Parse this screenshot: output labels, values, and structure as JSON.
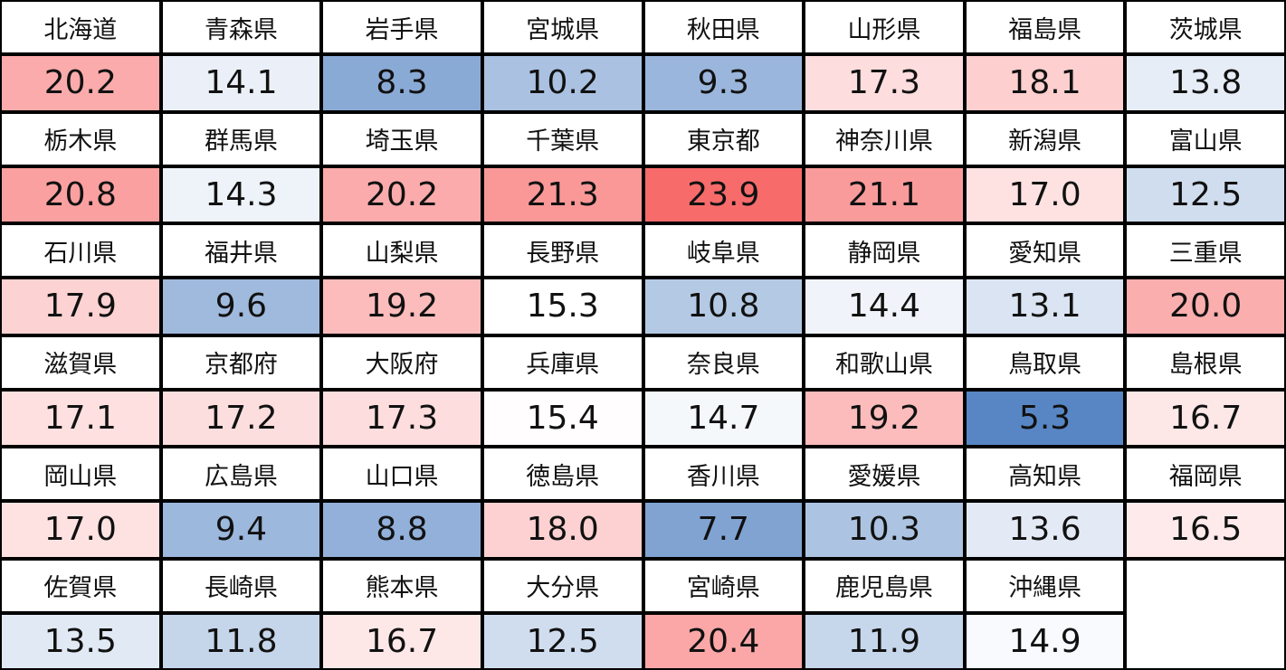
{
  "colors": {
    "max_red": "#F86B6B",
    "mid_white": "#FFFFFF",
    "min_blue": "#5886C4",
    "border": "#000000"
  },
  "rows": [
    [
      {
        "name": "北海道",
        "value": "20.2"
      },
      {
        "name": "青森県",
        "value": "14.1"
      },
      {
        "name": "岩手県",
        "value": "8.3"
      },
      {
        "name": "宮城県",
        "value": "10.2"
      },
      {
        "name": "秋田県",
        "value": "9.3"
      },
      {
        "name": "山形県",
        "value": "17.3"
      },
      {
        "name": "福島県",
        "value": "18.1"
      },
      {
        "name": "茨城県",
        "value": "13.8"
      }
    ],
    [
      {
        "name": "栃木県",
        "value": "20.8"
      },
      {
        "name": "群馬県",
        "value": "14.3"
      },
      {
        "name": "埼玉県",
        "value": "20.2"
      },
      {
        "name": "千葉県",
        "value": "21.3"
      },
      {
        "name": "東京都",
        "value": "23.9"
      },
      {
        "name": "神奈川県",
        "value": "21.1"
      },
      {
        "name": "新潟県",
        "value": "17.0"
      },
      {
        "name": "富山県",
        "value": "12.5"
      }
    ],
    [
      {
        "name": "石川県",
        "value": "17.9"
      },
      {
        "name": "福井県",
        "value": "9.6"
      },
      {
        "name": "山梨県",
        "value": "19.2"
      },
      {
        "name": "長野県",
        "value": "15.3"
      },
      {
        "name": "岐阜県",
        "value": "10.8"
      },
      {
        "name": "静岡県",
        "value": "14.4"
      },
      {
        "name": "愛知県",
        "value": "13.1"
      },
      {
        "name": "三重県",
        "value": "20.0"
      }
    ],
    [
      {
        "name": "滋賀県",
        "value": "17.1"
      },
      {
        "name": "京都府",
        "value": "17.2"
      },
      {
        "name": "大阪府",
        "value": "17.3"
      },
      {
        "name": "兵庫県",
        "value": "15.4"
      },
      {
        "name": "奈良県",
        "value": "14.7"
      },
      {
        "name": "和歌山県",
        "value": "19.2"
      },
      {
        "name": "鳥取県",
        "value": "5.3"
      },
      {
        "name": "島根県",
        "value": "16.7"
      }
    ],
    [
      {
        "name": "岡山県",
        "value": "17.0"
      },
      {
        "name": "広島県",
        "value": "9.4"
      },
      {
        "name": "山口県",
        "value": "8.8"
      },
      {
        "name": "徳島県",
        "value": "18.0"
      },
      {
        "name": "香川県",
        "value": "7.7"
      },
      {
        "name": "愛媛県",
        "value": "10.3"
      },
      {
        "name": "高知県",
        "value": "13.6"
      },
      {
        "name": "福岡県",
        "value": "16.5"
      }
    ],
    [
      {
        "name": "佐賀県",
        "value": "13.5"
      },
      {
        "name": "長崎県",
        "value": "11.8"
      },
      {
        "name": "熊本県",
        "value": "16.7"
      },
      {
        "name": "大分県",
        "value": "12.5"
      },
      {
        "name": "宮崎県",
        "value": "20.4"
      },
      {
        "name": "鹿児島県",
        "value": "11.9"
      },
      {
        "name": "沖縄県",
        "value": "14.9"
      }
    ]
  ]
}
